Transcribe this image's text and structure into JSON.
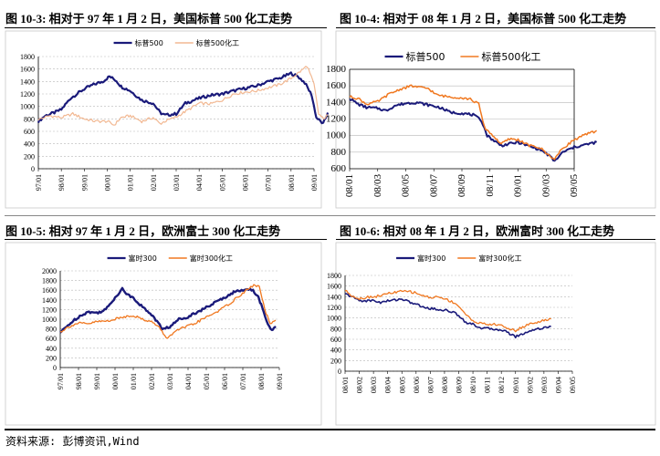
{
  "figures": [
    {
      "title": "图 10-3: 相对于 97 年 1 月 2 日，美国标普 500 化工走势"
    },
    {
      "title": "图 10-4: 相对于 08 年 1 月 2 日，美国标普 500 化工走势"
    },
    {
      "title": "图 10-5: 相对 97 年 1 月 2 日，欧洲富士 300 化工走势"
    },
    {
      "title": "图 10-6: 相对 08 年 1 月 2 日，欧洲富时 300 化工走势"
    }
  ],
  "source": "资料来源: 彭博资讯,Wind",
  "colors": {
    "series_a": "#1a1a7a",
    "series_b": "#f07820",
    "series_b_light": "#f2b892"
  },
  "chart_data": [
    {
      "type": "line",
      "x": [
        "97/01",
        "98/01",
        "99/01",
        "00/01",
        "01/01",
        "02/01",
        "03/01",
        "04/01",
        "05/01",
        "06/01",
        "07/01",
        "08/01",
        "09/01"
      ],
      "yticks": [
        0,
        200,
        400,
        600,
        800,
        1000,
        1200,
        1400,
        1600,
        1800
      ],
      "ylim": [
        0,
        1800
      ],
      "legend": "top-center",
      "series": [
        {
          "name": "标普500",
          "points": [
            [
              0,
              760
            ],
            [
              0.3,
              850
            ],
            [
              0.7,
              900
            ],
            [
              1,
              950
            ],
            [
              1.4,
              1130
            ],
            [
              2,
              1280
            ],
            [
              2.4,
              1350
            ],
            [
              2.8,
              1400
            ],
            [
              3.1,
              1480
            ],
            [
              3.4,
              1410
            ],
            [
              3.6,
              1320
            ],
            [
              4,
              1250
            ],
            [
              4.5,
              1100
            ],
            [
              5,
              1050
            ],
            [
              5.3,
              900
            ],
            [
              5.5,
              860
            ],
            [
              6,
              880
            ],
            [
              6.4,
              1050
            ],
            [
              7,
              1130
            ],
            [
              7.5,
              1180
            ],
            [
              8,
              1200
            ],
            [
              8.5,
              1250
            ],
            [
              9,
              1290
            ],
            [
              9.5,
              1330
            ],
            [
              10,
              1400
            ],
            [
              10.5,
              1450
            ],
            [
              11,
              1530
            ],
            [
              11.3,
              1480
            ],
            [
              11.6,
              1380
            ],
            [
              11.9,
              1180
            ],
            [
              12.1,
              820
            ],
            [
              12.4,
              720
            ],
            [
              12.6,
              900
            ]
          ]
        },
        {
          "name": "标普500化工",
          "points": [
            [
              0,
              790
            ],
            [
              0.5,
              850
            ],
            [
              1,
              820
            ],
            [
              1.5,
              880
            ],
            [
              2,
              800
            ],
            [
              2.5,
              760
            ],
            [
              3,
              760
            ],
            [
              3.3,
              700
            ],
            [
              3.6,
              820
            ],
            [
              4,
              850
            ],
            [
              4.5,
              760
            ],
            [
              5,
              820
            ],
            [
              5.3,
              720
            ],
            [
              5.5,
              760
            ],
            [
              6,
              830
            ],
            [
              6.5,
              940
            ],
            [
              7,
              1050
            ],
            [
              7.5,
              1040
            ],
            [
              8,
              1100
            ],
            [
              8.5,
              1200
            ],
            [
              9,
              1230
            ],
            [
              9.5,
              1250
            ],
            [
              10,
              1300
            ],
            [
              10.5,
              1350
            ],
            [
              11,
              1450
            ],
            [
              11.4,
              1560
            ],
            [
              11.7,
              1650
            ],
            [
              12,
              1350
            ],
            [
              12.2,
              880
            ],
            [
              12.4,
              800
            ],
            [
              12.6,
              860
            ]
          ]
        }
      ]
    },
    {
      "type": "line",
      "x": [
        "08/01",
        "08/03",
        "08/05",
        "08/07",
        "08/09",
        "08/11",
        "09/01",
        "09/03",
        "09/05"
      ],
      "yticks": [
        600,
        800,
        1000,
        1200,
        1400,
        1600,
        1800
      ],
      "ylim": [
        600,
        1800
      ],
      "legend": "top-center",
      "series": [
        {
          "name": "标普500",
          "points": [
            [
              0,
              1450
            ],
            [
              0.3,
              1380
            ],
            [
              0.6,
              1340
            ],
            [
              1,
              1330
            ],
            [
              1.3,
              1300
            ],
            [
              1.6,
              1360
            ],
            [
              2,
              1390
            ],
            [
              2.4,
              1400
            ],
            [
              2.8,
              1370
            ],
            [
              3.2,
              1340
            ],
            [
              3.6,
              1280
            ],
            [
              4,
              1270
            ],
            [
              4.4,
              1250
            ],
            [
              4.7,
              1180
            ],
            [
              4.9,
              1000
            ],
            [
              5.1,
              950
            ],
            [
              5.4,
              880
            ],
            [
              5.7,
              900
            ],
            [
              6,
              920
            ],
            [
              6.4,
              870
            ],
            [
              6.8,
              830
            ],
            [
              7.1,
              760
            ],
            [
              7.3,
              690
            ],
            [
              7.6,
              800
            ],
            [
              8,
              860
            ],
            [
              8.4,
              890
            ],
            [
              8.8,
              920
            ]
          ]
        },
        {
          "name": "标普500化工",
          "points": [
            [
              0,
              1470
            ],
            [
              0.3,
              1450
            ],
            [
              0.6,
              1380
            ],
            [
              1,
              1410
            ],
            [
              1.4,
              1500
            ],
            [
              1.8,
              1560
            ],
            [
              2.2,
              1600
            ],
            [
              2.5,
              1580
            ],
            [
              2.8,
              1570
            ],
            [
              3.1,
              1490
            ],
            [
              3.5,
              1470
            ],
            [
              3.9,
              1460
            ],
            [
              4.3,
              1440
            ],
            [
              4.6,
              1380
            ],
            [
              4.8,
              1100
            ],
            [
              5.1,
              1000
            ],
            [
              5.4,
              900
            ],
            [
              5.7,
              960
            ],
            [
              6,
              950
            ],
            [
              6.4,
              880
            ],
            [
              6.8,
              850
            ],
            [
              7.1,
              760
            ],
            [
              7.3,
              720
            ],
            [
              7.6,
              850
            ],
            [
              8,
              950
            ],
            [
              8.4,
              1010
            ],
            [
              8.8,
              1060
            ]
          ]
        }
      ]
    },
    {
      "type": "line",
      "x": [
        "97/01",
        "98/01",
        "99/01",
        "00/01",
        "01/01",
        "02/01",
        "03/01",
        "04/01",
        "05/01",
        "06/01",
        "07/01",
        "08/01",
        "09/01"
      ],
      "yticks": [
        0,
        200,
        400,
        600,
        800,
        1000,
        1200,
        1400,
        1600,
        1800,
        2000
      ],
      "ylim": [
        0,
        2000
      ],
      "legend": "top-center",
      "series": [
        {
          "name": "富时300",
          "points": [
            [
              0,
              720
            ],
            [
              0.5,
              900
            ],
            [
              1,
              1050
            ],
            [
              1.5,
              1150
            ],
            [
              2,
              1130
            ],
            [
              2.5,
              1200
            ],
            [
              3,
              1450
            ],
            [
              3.4,
              1630
            ],
            [
              3.7,
              1500
            ],
            [
              4,
              1450
            ],
            [
              4.5,
              1250
            ],
            [
              5,
              1100
            ],
            [
              5.3,
              950
            ],
            [
              5.6,
              800
            ],
            [
              6,
              840
            ],
            [
              6.5,
              1000
            ],
            [
              7,
              1050
            ],
            [
              7.5,
              1150
            ],
            [
              8,
              1240
            ],
            [
              8.5,
              1350
            ],
            [
              9,
              1450
            ],
            [
              9.5,
              1560
            ],
            [
              10,
              1600
            ],
            [
              10.4,
              1640
            ],
            [
              10.8,
              1500
            ],
            [
              11,
              1300
            ],
            [
              11.3,
              950
            ],
            [
              11.6,
              760
            ],
            [
              11.8,
              850
            ]
          ]
        },
        {
          "name": "富时300化工",
          "points": [
            [
              0,
              740
            ],
            [
              0.5,
              850
            ],
            [
              1,
              920
            ],
            [
              1.5,
              900
            ],
            [
              2,
              950
            ],
            [
              2.5,
              960
            ],
            [
              3,
              1000
            ],
            [
              3.5,
              1050
            ],
            [
              4,
              1080
            ],
            [
              4.5,
              1000
            ],
            [
              5,
              950
            ],
            [
              5.5,
              800
            ],
            [
              5.8,
              600
            ],
            [
              6.2,
              720
            ],
            [
              6.7,
              820
            ],
            [
              7.2,
              880
            ],
            [
              7.7,
              980
            ],
            [
              8.2,
              1080
            ],
            [
              8.7,
              1180
            ],
            [
              9.2,
              1300
            ],
            [
              9.7,
              1450
            ],
            [
              10.2,
              1600
            ],
            [
              10.6,
              1700
            ],
            [
              10.9,
              1680
            ],
            [
              11.2,
              1200
            ],
            [
              11.5,
              900
            ],
            [
              11.8,
              980
            ]
          ]
        }
      ]
    },
    {
      "type": "line",
      "x": [
        "08/01",
        "08/02",
        "08/03",
        "08/04",
        "08/05",
        "08/06",
        "08/07",
        "08/08",
        "08/09",
        "08/10",
        "08/11",
        "08/12",
        "09/01",
        "09/02",
        "09/03",
        "09/04",
        "09/05"
      ],
      "yticks": [
        0,
        200,
        400,
        600,
        800,
        1000,
        1200,
        1400,
        1600,
        1800
      ],
      "ylim": [
        0,
        1800
      ],
      "legend": "top-center",
      "series": [
        {
          "name": "富时300",
          "points": [
            [
              0,
              1450
            ],
            [
              0.5,
              1400
            ],
            [
              1,
              1330
            ],
            [
              1.5,
              1320
            ],
            [
              2,
              1330
            ],
            [
              2.5,
              1290
            ],
            [
              3,
              1320
            ],
            [
              3.5,
              1340
            ],
            [
              4,
              1360
            ],
            [
              4.5,
              1300
            ],
            [
              5,
              1260
            ],
            [
              5.5,
              1200
            ],
            [
              6,
              1180
            ],
            [
              6.5,
              1160
            ],
            [
              7,
              1150
            ],
            [
              7.5,
              1120
            ],
            [
              8,
              1050
            ],
            [
              8.5,
              920
            ],
            [
              9,
              880
            ],
            [
              9.5,
              820
            ],
            [
              10,
              800
            ],
            [
              10.5,
              790
            ],
            [
              11,
              780
            ],
            [
              11.5,
              720
            ],
            [
              12,
              650
            ],
            [
              12.5,
              700
            ],
            [
              13,
              760
            ],
            [
              13.5,
              790
            ],
            [
              14,
              820
            ],
            [
              14.5,
              840
            ]
          ]
        },
        {
          "name": "富时300化工",
          "points": [
            [
              0,
              1520
            ],
            [
              0.5,
              1420
            ],
            [
              1,
              1360
            ],
            [
              1.5,
              1390
            ],
            [
              2,
              1400
            ],
            [
              2.5,
              1420
            ],
            [
              3,
              1460
            ],
            [
              3.5,
              1480
            ],
            [
              4,
              1500
            ],
            [
              4.5,
              1500
            ],
            [
              5,
              1470
            ],
            [
              5.5,
              1420
            ],
            [
              6,
              1380
            ],
            [
              6.5,
              1400
            ],
            [
              7,
              1360
            ],
            [
              7.5,
              1310
            ],
            [
              8,
              1230
            ],
            [
              8.5,
              1060
            ],
            [
              9,
              950
            ],
            [
              9.5,
              900
            ],
            [
              10,
              880
            ],
            [
              10.5,
              880
            ],
            [
              11,
              860
            ],
            [
              11.5,
              800
            ],
            [
              12,
              760
            ],
            [
              12.5,
              830
            ],
            [
              13,
              890
            ],
            [
              13.5,
              920
            ],
            [
              14,
              950
            ],
            [
              14.5,
              980
            ]
          ]
        }
      ]
    }
  ]
}
